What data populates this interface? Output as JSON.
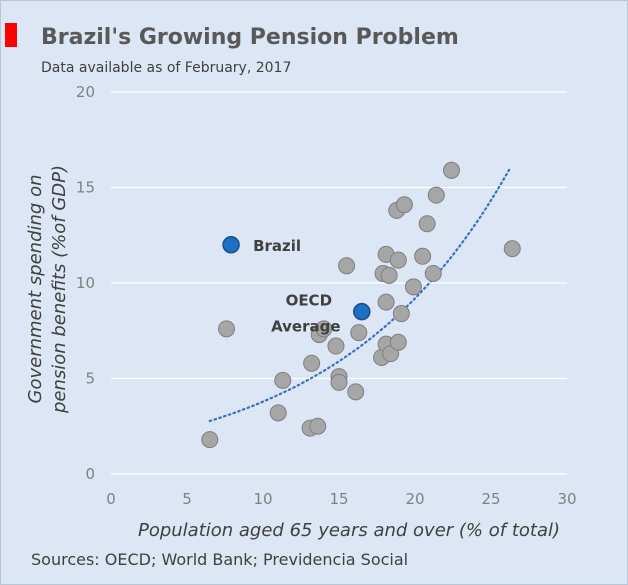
{
  "header": {
    "title": "Brazil's Growing Pension Problem",
    "subtitle": "Data available as of February, 2017"
  },
  "footer": {
    "sources": "Sources: OECD; World Bank; Previdencia Social"
  },
  "colors": {
    "background": "#dce6f4",
    "accent": "#ff0000",
    "point_fill": "#a6a6a6",
    "point_stroke": "#7f7f7f",
    "highlight_fill": "#1f6fc5",
    "highlight_stroke": "#154f8e",
    "trend": "#3a6fd0",
    "grid": "#ffffff"
  },
  "chart_data": {
    "type": "scatter",
    "title": "Brazil's Growing Pension Problem",
    "subtitle": "Data available as of February, 2017",
    "xlabel": "Population aged 65 years and over (% of total)",
    "ylabel_lines": [
      "Government spending on",
      "pension benefits (%of GDP)"
    ],
    "xlim": [
      0,
      30
    ],
    "ylim": [
      0,
      20
    ],
    "xticks": [
      0,
      5,
      10,
      15,
      20,
      25,
      30
    ],
    "yticks": [
      0,
      5,
      10,
      15,
      20
    ],
    "grid": "horizontal",
    "points": [
      {
        "x": 6.5,
        "y": 1.8
      },
      {
        "x": 7.6,
        "y": 7.6
      },
      {
        "x": 11.0,
        "y": 3.2
      },
      {
        "x": 11.3,
        "y": 4.9
      },
      {
        "x": 13.1,
        "y": 2.4
      },
      {
        "x": 13.2,
        "y": 5.8
      },
      {
        "x": 13.6,
        "y": 2.5
      },
      {
        "x": 13.7,
        "y": 7.3
      },
      {
        "x": 14.0,
        "y": 7.6
      },
      {
        "x": 14.8,
        "y": 6.7
      },
      {
        "x": 15.0,
        "y": 5.1
      },
      {
        "x": 15.0,
        "y": 4.8
      },
      {
        "x": 15.5,
        "y": 10.9
      },
      {
        "x": 16.1,
        "y": 4.3
      },
      {
        "x": 16.3,
        "y": 7.4
      },
      {
        "x": 17.8,
        "y": 6.1
      },
      {
        "x": 17.9,
        "y": 10.5
      },
      {
        "x": 18.1,
        "y": 11.5
      },
      {
        "x": 18.1,
        "y": 9.0
      },
      {
        "x": 18.1,
        "y": 6.8
      },
      {
        "x": 18.3,
        "y": 10.4
      },
      {
        "x": 18.4,
        "y": 6.3
      },
      {
        "x": 18.8,
        "y": 13.8
      },
      {
        "x": 18.9,
        "y": 11.2
      },
      {
        "x": 18.9,
        "y": 6.9
      },
      {
        "x": 19.1,
        "y": 8.4
      },
      {
        "x": 19.3,
        "y": 14.1
      },
      {
        "x": 19.9,
        "y": 9.8
      },
      {
        "x": 20.5,
        "y": 11.4
      },
      {
        "x": 20.8,
        "y": 13.1
      },
      {
        "x": 21.2,
        "y": 10.5
      },
      {
        "x": 21.4,
        "y": 14.6
      },
      {
        "x": 22.4,
        "y": 15.9
      },
      {
        "x": 26.4,
        "y": 11.8
      }
    ],
    "highlighted": [
      {
        "label": "Brazil",
        "x": 7.9,
        "y": 12.0
      },
      {
        "label_lines": [
          "OECD",
          "Average"
        ],
        "x": 16.5,
        "y": 8.5
      }
    ],
    "trendline": {
      "type": "exponential",
      "style": "dotted",
      "x_range": [
        6.5,
        26.3
      ],
      "a": 1.56,
      "b": 0.0887
    }
  }
}
